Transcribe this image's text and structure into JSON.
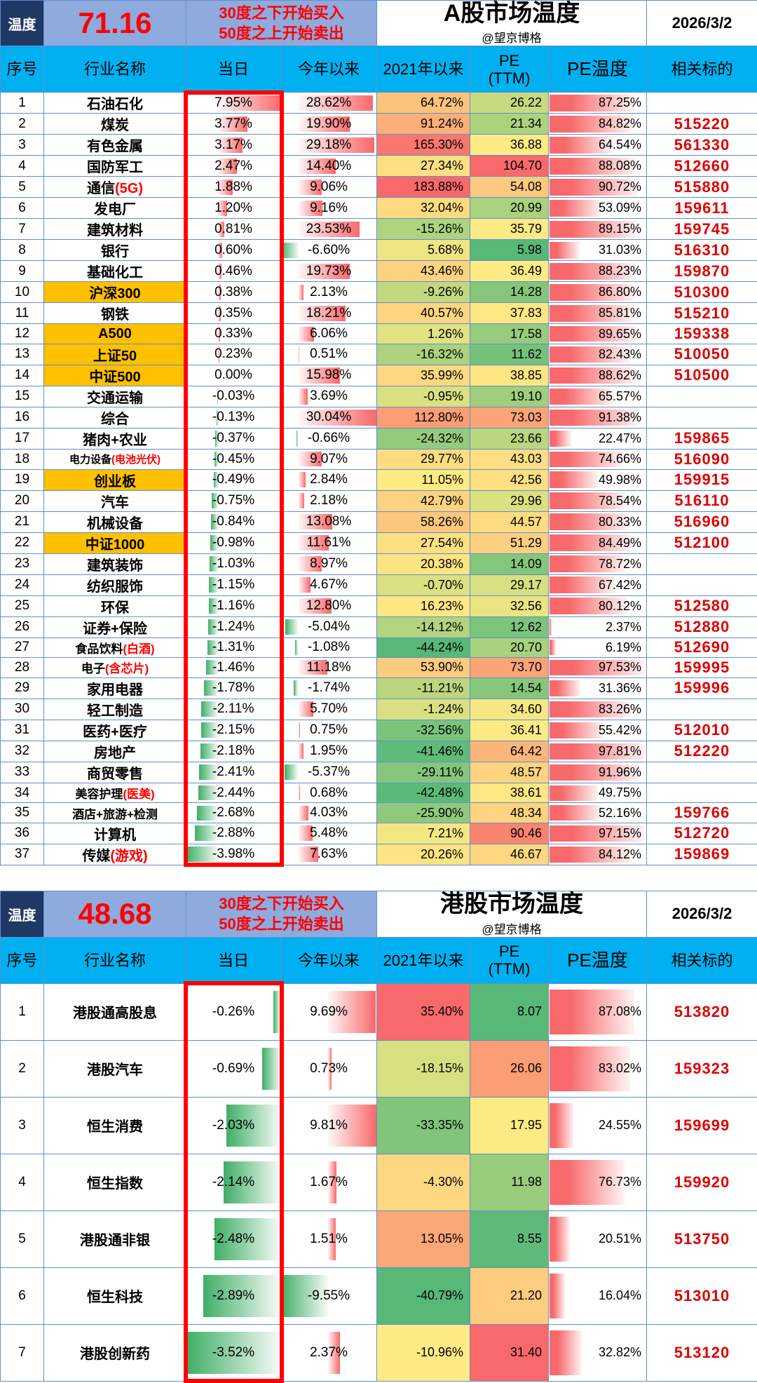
{
  "meta": {
    "date": "2026/3/2",
    "author": "@望京博格",
    "hint_line1": "30度之下开始买入",
    "hint_line2": "50度之上开始卖出"
  },
  "columns": [
    "序号",
    "行业名称",
    "当日",
    "今年以来",
    "2021年以来",
    "PE\n(TTM)",
    "PE温度",
    "相关标的"
  ],
  "row_fields": [
    "industry_name",
    "name_note",
    "is_index_row",
    "daily_pct",
    "ytd_pct",
    "since_2021_pct",
    "pe_ttm",
    "pe_temperature_pct",
    "related_code"
  ],
  "tables": [
    {
      "temperature_label": "温度",
      "temperature": "71.16",
      "title": "A股市场温度",
      "rows": [
        [
          "石油石化",
          "",
          false,
          7.95,
          28.62,
          64.72,
          26.22,
          87.25,
          ""
        ],
        [
          "煤炭",
          "",
          false,
          3.77,
          19.9,
          91.24,
          21.34,
          84.82,
          "515220"
        ],
        [
          "有色金属",
          "",
          false,
          3.17,
          29.18,
          165.3,
          36.88,
          64.54,
          "561330"
        ],
        [
          "国防军工",
          "",
          false,
          2.47,
          14.4,
          27.34,
          104.7,
          88.08,
          "512660"
        ],
        [
          "通信",
          "(5G)",
          false,
          1.88,
          9.06,
          183.88,
          54.08,
          90.72,
          "515880"
        ],
        [
          "发电厂",
          "",
          false,
          1.2,
          9.16,
          32.04,
          20.99,
          53.09,
          "159611"
        ],
        [
          "建筑材料",
          "",
          false,
          0.81,
          23.53,
          -15.26,
          35.79,
          89.15,
          "159745"
        ],
        [
          "银行",
          "",
          false,
          0.6,
          -6.6,
          5.68,
          5.98,
          31.03,
          "516310"
        ],
        [
          "基础化工",
          "",
          false,
          0.46,
          19.73,
          43.46,
          36.49,
          88.23,
          "159870"
        ],
        [
          "沪深300",
          "",
          true,
          0.38,
          2.13,
          -9.26,
          14.28,
          86.8,
          "510300"
        ],
        [
          "钢铁",
          "",
          false,
          0.35,
          18.21,
          40.57,
          37.83,
          85.81,
          "515210"
        ],
        [
          "A500",
          "",
          true,
          0.33,
          6.06,
          1.26,
          17.58,
          89.65,
          "159338"
        ],
        [
          "上证50",
          "",
          true,
          0.23,
          0.51,
          -16.32,
          11.62,
          82.43,
          "510050"
        ],
        [
          "中证500",
          "",
          true,
          0.0,
          15.98,
          35.99,
          38.85,
          88.62,
          "510500"
        ],
        [
          "交通运输",
          "",
          false,
          -0.03,
          3.69,
          -0.95,
          19.1,
          65.57,
          ""
        ],
        [
          "综合",
          "",
          false,
          -0.13,
          30.04,
          112.8,
          73.03,
          91.38,
          ""
        ],
        [
          "猪肉+农业",
          "",
          false,
          -0.37,
          -0.66,
          -24.32,
          23.66,
          22.47,
          "159865"
        ],
        [
          "电力设备",
          "(电池光伏)",
          false,
          -0.45,
          9.07,
          29.77,
          43.03,
          74.66,
          "516090"
        ],
        [
          "创业板",
          "",
          true,
          -0.49,
          2.84,
          11.05,
          42.56,
          49.98,
          "159915"
        ],
        [
          "汽车",
          "",
          false,
          -0.75,
          2.18,
          42.79,
          29.96,
          78.54,
          "516110"
        ],
        [
          "机械设备",
          "",
          false,
          -0.84,
          13.08,
          58.26,
          44.57,
          80.33,
          "516960"
        ],
        [
          "中证1000",
          "",
          true,
          -0.98,
          11.61,
          27.54,
          51.29,
          84.49,
          "512100"
        ],
        [
          "建筑装饰",
          "",
          false,
          -1.03,
          8.97,
          20.38,
          14.09,
          78.72,
          ""
        ],
        [
          "纺织服饰",
          "",
          false,
          -1.15,
          4.67,
          -0.7,
          29.17,
          67.42,
          ""
        ],
        [
          "环保",
          "",
          false,
          -1.16,
          12.8,
          16.23,
          32.56,
          80.12,
          "512580"
        ],
        [
          "证券+保险",
          "",
          false,
          -1.24,
          -5.04,
          -14.12,
          12.62,
          2.37,
          "512880"
        ],
        [
          "食品饮料",
          "(白酒)",
          false,
          -1.31,
          -1.08,
          -44.24,
          20.7,
          6.19,
          "512690"
        ],
        [
          "电子",
          "(含芯片)",
          false,
          -1.46,
          11.18,
          53.9,
          73.7,
          97.53,
          "159995"
        ],
        [
          "家用电器",
          "",
          false,
          -1.78,
          -1.74,
          -11.21,
          14.54,
          31.36,
          "159996"
        ],
        [
          "轻工制造",
          "",
          false,
          -2.11,
          5.7,
          -1.24,
          34.6,
          83.26,
          ""
        ],
        [
          "医药+医疗",
          "",
          false,
          -2.15,
          0.75,
          -32.56,
          36.41,
          55.42,
          "512010"
        ],
        [
          "房地产",
          "",
          false,
          -2.18,
          1.95,
          -41.46,
          64.42,
          97.81,
          "512220"
        ],
        [
          "商贸零售",
          "",
          false,
          -2.41,
          -5.37,
          -29.11,
          48.57,
          91.96,
          ""
        ],
        [
          "美容护理",
          "(医美)",
          false,
          -2.44,
          0.68,
          -42.48,
          38.61,
          49.75,
          ""
        ],
        [
          "酒店+旅游+检测",
          "",
          false,
          -2.68,
          4.03,
          -25.9,
          48.34,
          52.16,
          "159766"
        ],
        [
          "计算机",
          "",
          false,
          -2.88,
          5.48,
          7.21,
          90.46,
          97.15,
          "512720"
        ],
        [
          "传媒",
          "(游戏)",
          false,
          -3.98,
          7.63,
          20.26,
          46.67,
          84.12,
          "159869"
        ]
      ]
    },
    {
      "temperature_label": "温度",
      "temperature": "48.68",
      "title": "港股市场温度",
      "rows": [
        [
          "港股通高股息",
          "",
          false,
          -0.26,
          9.69,
          35.4,
          8.07,
          87.08,
          "513820"
        ],
        [
          "港股汽车",
          "",
          false,
          -0.69,
          0.73,
          -18.15,
          26.06,
          83.02,
          "159323"
        ],
        [
          "恒生消费",
          "",
          false,
          -2.03,
          9.81,
          -33.35,
          17.95,
          24.55,
          "159699"
        ],
        [
          "恒生指数",
          "",
          false,
          -2.14,
          1.67,
          -4.3,
          11.98,
          76.73,
          "159920"
        ],
        [
          "港股通非银",
          "",
          false,
          -2.48,
          1.51,
          13.05,
          8.55,
          20.51,
          "513750"
        ],
        [
          "恒生科技",
          "",
          false,
          -2.89,
          -9.55,
          -40.79,
          21.2,
          16.04,
          "513010"
        ],
        [
          "港股创新药",
          "",
          false,
          -3.52,
          2.37,
          -10.96,
          31.4,
          32.82,
          "513120"
        ]
      ]
    }
  ],
  "colors": {
    "header_navy": "#1F3864",
    "header_blue": "#8FAADC",
    "header_cyan": "#00B0F0",
    "index_row_orange": "#FFC000",
    "code_red": "#E00000",
    "accent_red": "#FF0000",
    "bar_positive": "#F8696B",
    "bar_negative": "#3FAE66",
    "scale_green": "#57B878",
    "scale_yellow": "#FFEB84",
    "scale_red": "#F8696B",
    "grid_blue": "#5F8FD0"
  }
}
